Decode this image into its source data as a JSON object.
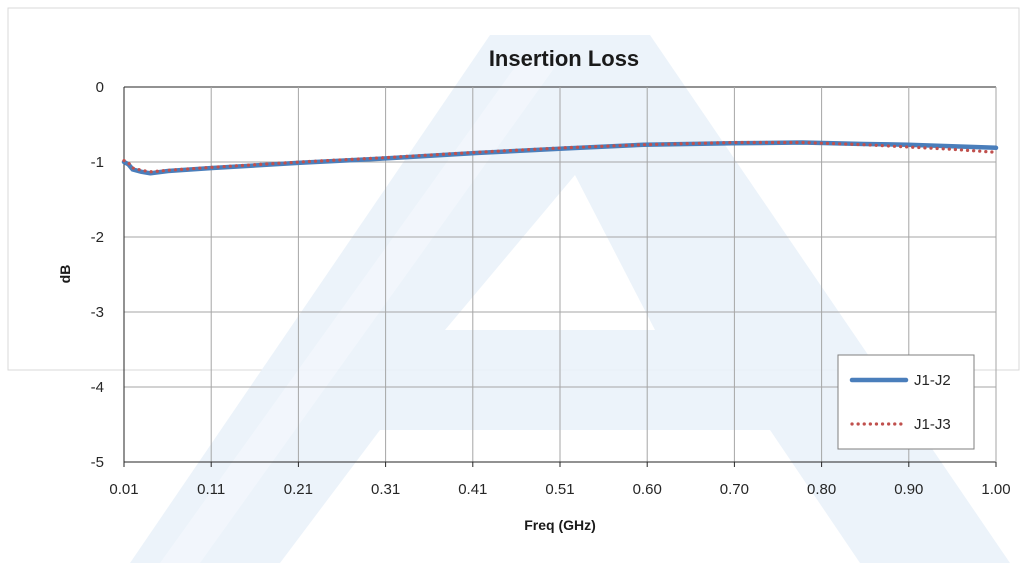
{
  "chart_data": {
    "type": "line",
    "title": "Insertion Loss",
    "xlabel": "Freq (GHz)",
    "ylabel": "dB",
    "xlim": [
      0.01,
      1.0
    ],
    "ylim": [
      -5,
      0
    ],
    "x_ticks": [
      "0.01",
      "0.11",
      "0.21",
      "0.31",
      "0.41",
      "0.51",
      "0.60",
      "0.70",
      "0.80",
      "0.90",
      "1.00"
    ],
    "y_ticks": [
      0,
      -1,
      -2,
      -3,
      -4,
      -5
    ],
    "grid": true,
    "legend_position": "bottom-right",
    "series": [
      {
        "name": "J1-J2",
        "style": "solid",
        "color": "#4A7EBB",
        "x": [
          0.01,
          0.015,
          0.02,
          0.03,
          0.04,
          0.06,
          0.11,
          0.21,
          0.31,
          0.41,
          0.51,
          0.6,
          0.7,
          0.78,
          0.85,
          0.9,
          0.95,
          1.0
        ],
        "y": [
          -1.0,
          -1.03,
          -1.1,
          -1.13,
          -1.15,
          -1.12,
          -1.08,
          -1.01,
          -0.95,
          -0.88,
          -0.82,
          -0.77,
          -0.75,
          -0.74,
          -0.76,
          -0.77,
          -0.79,
          -0.81
        ]
      },
      {
        "name": "J1-J3",
        "style": "dotted",
        "color": "#C0504D",
        "x": [
          0.01,
          0.015,
          0.02,
          0.03,
          0.04,
          0.06,
          0.11,
          0.21,
          0.31,
          0.41,
          0.51,
          0.6,
          0.7,
          0.78,
          0.85,
          0.9,
          0.95,
          1.0
        ],
        "y": [
          -0.98,
          -1.01,
          -1.08,
          -1.11,
          -1.13,
          -1.11,
          -1.07,
          -1.0,
          -0.94,
          -0.87,
          -0.81,
          -0.77,
          -0.74,
          -0.74,
          -0.77,
          -0.8,
          -0.83,
          -0.87
        ]
      }
    ]
  }
}
